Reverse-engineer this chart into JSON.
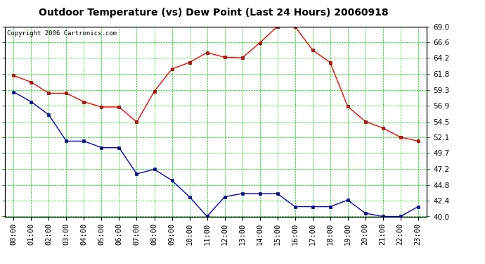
{
  "title": "Outdoor Temperature (vs) Dew Point (Last 24 Hours) 20060918",
  "copyright": "Copyright 2006 Cartronics.com",
  "hours": [
    "00:00",
    "01:00",
    "02:00",
    "03:00",
    "04:00",
    "05:00",
    "06:00",
    "07:00",
    "08:00",
    "09:00",
    "10:00",
    "11:00",
    "12:00",
    "13:00",
    "14:00",
    "15:00",
    "16:00",
    "17:00",
    "18:00",
    "19:00",
    "20:00",
    "21:00",
    "22:00",
    "23:00"
  ],
  "temp": [
    61.5,
    60.5,
    58.8,
    58.8,
    57.5,
    56.7,
    56.7,
    54.4,
    59.1,
    62.5,
    63.5,
    65.0,
    64.3,
    64.2,
    66.5,
    69.0,
    69.0,
    65.4,
    63.5,
    56.8,
    54.5,
    53.5,
    52.1,
    51.5
  ],
  "dew": [
    59.0,
    57.5,
    55.5,
    51.5,
    51.5,
    50.5,
    50.5,
    46.5,
    47.2,
    45.5,
    43.0,
    40.0,
    43.0,
    43.5,
    43.5,
    43.5,
    41.5,
    41.5,
    41.5,
    42.5,
    40.5,
    40.0,
    40.0,
    41.5
  ],
  "ylim_min": 40.0,
  "ylim_max": 69.0,
  "yticks": [
    40.0,
    42.4,
    44.8,
    47.2,
    49.7,
    52.1,
    54.5,
    56.9,
    59.3,
    61.8,
    64.2,
    66.6,
    69.0
  ],
  "temp_color": "#ff0000",
  "dew_color": "#0000cc",
  "grid_color": "#00cc00",
  "bg_color": "#ffffff",
  "plot_bg_color": "#ffffff",
  "title_fontsize": 10,
  "copyright_fontsize": 6.5,
  "tick_fontsize": 7.5,
  "marker": "s",
  "marker_size": 2.5,
  "line_width": 1.0
}
